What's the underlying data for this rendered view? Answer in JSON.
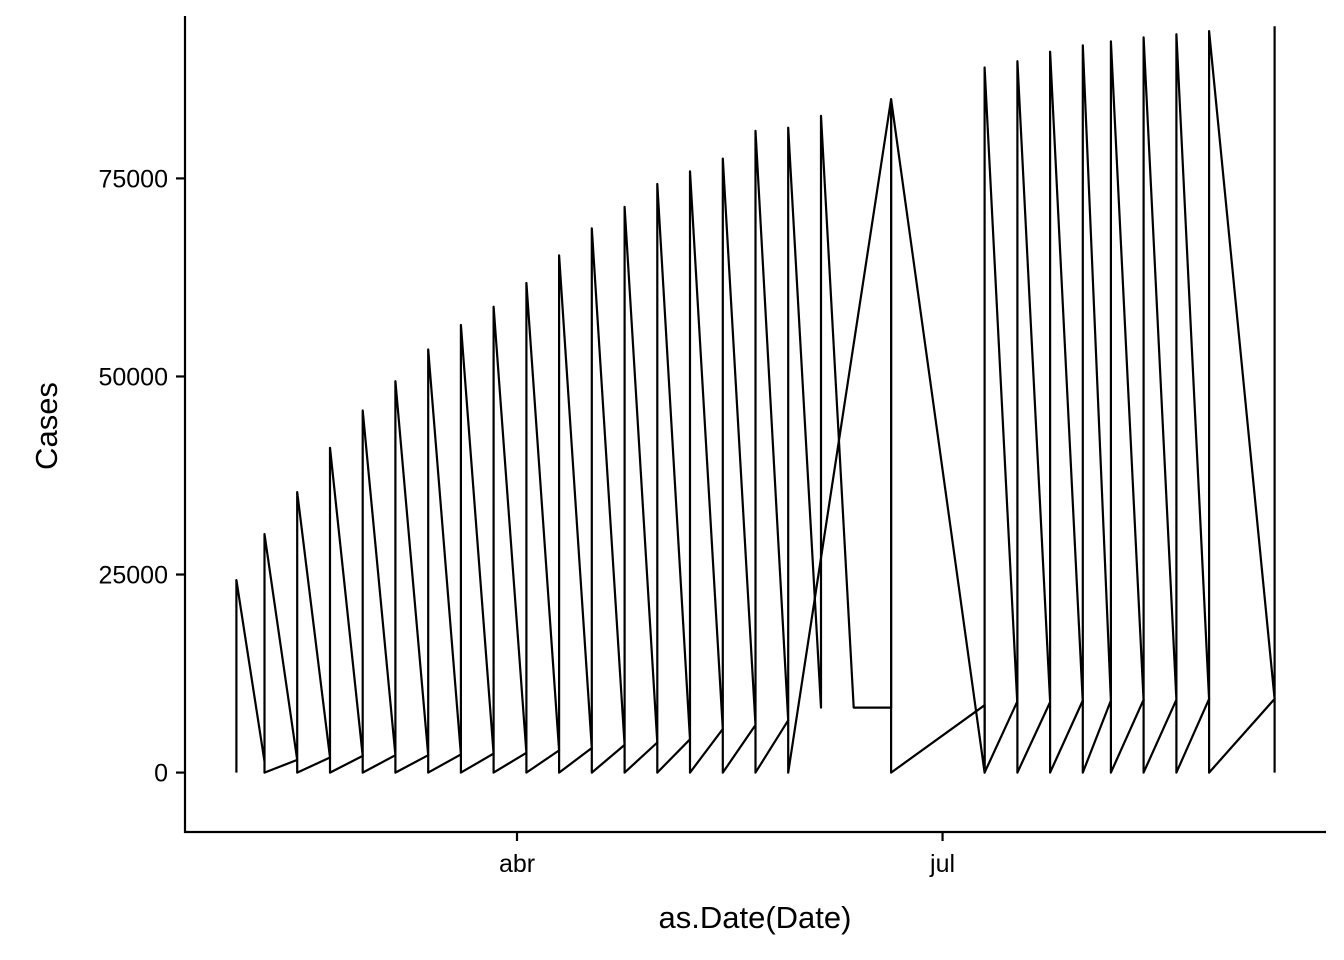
{
  "chart_data": {
    "type": "line",
    "title": "",
    "xlabel": "as.Date(Date)",
    "ylabel": "Cases",
    "ylim": [
      -7500,
      95500
    ],
    "xlim": [
      "2020-01-21",
      "2020-09-21"
    ],
    "x_ticks": [
      {
        "date": "2020-04-01",
        "label": "abr"
      },
      {
        "date": "2020-07-01",
        "label": "jul"
      }
    ],
    "y_ticks": [
      {
        "value": 0,
        "label": "0"
      },
      {
        "value": 25000,
        "label": "25000"
      },
      {
        "value": 50000,
        "label": "50000"
      },
      {
        "value": 75000,
        "label": "75000"
      }
    ],
    "grid": false,
    "legend": "none",
    "line_color": "#000000",
    "series": [
      {
        "x": [
          "2020-02-01",
          "2020-02-01",
          "2020-02-07",
          "2020-02-07",
          "2020-02-14",
          "2020-02-14",
          "2020-02-21",
          "2020-02-21",
          "2020-02-28",
          "2020-02-28",
          "2020-03-06",
          "2020-03-06",
          "2020-03-13",
          "2020-03-13",
          "2020-03-20",
          "2020-03-20",
          "2020-03-27",
          "2020-03-27",
          "2020-04-03",
          "2020-04-03",
          "2020-04-10",
          "2020-04-10",
          "2020-04-17",
          "2020-04-17",
          "2020-04-24",
          "2020-04-24",
          "2020-05-01",
          "2020-05-01",
          "2020-05-08",
          "2020-05-08",
          "2020-05-15",
          "2020-05-15",
          "2020-05-22",
          "2020-05-22",
          "2020-05-29",
          "2020-05-29",
          "2020-06-05",
          "2020-06-05",
          "2020-06-12",
          "2020-06-12",
          "2020-06-20",
          "2020-06-20",
          "2020-07-10",
          "2020-07-10",
          "2020-07-17",
          "2020-07-17",
          "2020-07-24",
          "2020-07-24",
          "2020-07-31",
          "2020-07-31",
          "2020-08-06",
          "2020-08-06",
          "2020-08-13",
          "2020-08-13",
          "2020-08-20",
          "2020-08-20",
          "2020-08-27",
          "2020-08-27",
          "2020-09-10",
          "2020-09-10"
        ],
        "y": [
          0,
          24300,
          1400,
          30100,
          1600,
          35400,
          1900,
          41000,
          2100,
          45700,
          2200,
          49400,
          2200,
          53400,
          2300,
          56500,
          2400,
          58800,
          2500,
          61800,
          2800,
          65300,
          3100,
          68700,
          3500,
          71400,
          3800,
          74300,
          4200,
          75900,
          5500,
          77500,
          6000,
          81000,
          6600,
          81400,
          8200,
          82900,
          8200,
          8200,
          8200,
          85000,
          0,
          89000,
          8500,
          89800,
          9000,
          91000,
          8900,
          91800,
          9100,
          92300,
          9100,
          92800,
          9200,
          93200,
          9200,
          93600,
          9300,
          94200
        ]
      },
      {
        "x": [
          "2020-02-07",
          "2020-02-07",
          "2020-02-14",
          "2020-02-14",
          "2020-02-21",
          "2020-02-21",
          "2020-02-28",
          "2020-02-28",
          "2020-03-06",
          "2020-03-06",
          "2020-03-13",
          "2020-03-13",
          "2020-03-20",
          "2020-03-20",
          "2020-03-27",
          "2020-03-27",
          "2020-04-03",
          "2020-04-03",
          "2020-04-10",
          "2020-04-10",
          "2020-04-17",
          "2020-04-17",
          "2020-04-24",
          "2020-04-24",
          "2020-05-01",
          "2020-05-01",
          "2020-05-08",
          "2020-05-08",
          "2020-05-15",
          "2020-05-15",
          "2020-05-22",
          "2020-05-22",
          "2020-05-29",
          "2020-05-29",
          "2020-06-20",
          "2020-06-20",
          "2020-07-10",
          "2020-07-10",
          "2020-07-17",
          "2020-07-17",
          "2020-07-24",
          "2020-07-24",
          "2020-07-31",
          "2020-07-31",
          "2020-08-06",
          "2020-08-06",
          "2020-08-13",
          "2020-08-13",
          "2020-08-20",
          "2020-08-20",
          "2020-08-27",
          "2020-08-27",
          "2020-09-10",
          "2020-09-10"
        ],
        "y": [
          1400,
          0,
          1600,
          0,
          1900,
          0,
          2100,
          0,
          2200,
          0,
          2200,
          0,
          2300,
          0,
          2400,
          0,
          2500,
          0,
          2800,
          0,
          3100,
          0,
          3500,
          0,
          3800,
          0,
          4200,
          0,
          5500,
          0,
          6000,
          0,
          6600,
          0,
          85000,
          0,
          8500,
          0,
          9000,
          0,
          8900,
          0,
          9100,
          0,
          9100,
          0,
          9200,
          0,
          9200,
          0,
          9300,
          0,
          9300,
          0
        ]
      }
    ]
  }
}
